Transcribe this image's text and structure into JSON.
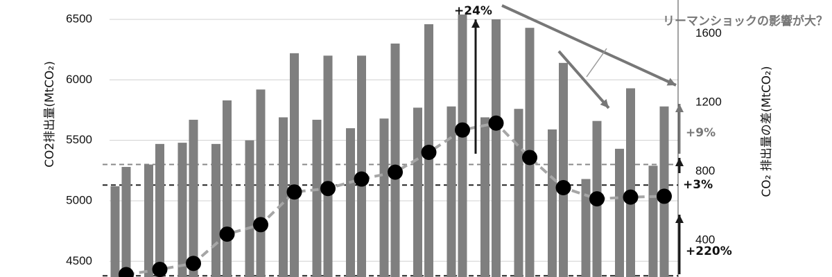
{
  "chart_data": {
    "type": "bar",
    "ylabel_left": "CO2排出量(MtCO₂)",
    "ylabel_right": "CO₂ 排出量の差(MtCO₂)",
    "ylim_left": [
      4370,
      6660
    ],
    "yticks_left": [
      4500,
      5000,
      5500,
      6000,
      6500
    ],
    "ylim_right": [
      186,
      1795
    ],
    "yticks_right": [
      400,
      800,
      1200,
      1600
    ],
    "grid": "horizontal",
    "series": [
      {
        "values": [
          5120,
          5300,
          5480,
          5470,
          5500,
          5690,
          5670,
          5600,
          5680,
          5770,
          5780,
          5690,
          5760,
          5590,
          5180,
          5430,
          5290
        ]
      },
      {
        "values": [
          5280,
          5470,
          5670,
          5830,
          5920,
          6220,
          6200,
          6200,
          6300,
          6460,
          6540,
          6500,
          6430,
          6140,
          5660,
          5930,
          5780
        ]
      },
      {
        "values": [
          200,
          230,
          265,
          435,
          490,
          680,
          700,
          755,
          795,
          910,
          1040,
          1080,
          880,
          705,
          640,
          650,
          655
        ]
      }
    ],
    "reference_lines": [
      {
        "axis": "left",
        "value": 5300,
        "style": "dashed",
        "color": "#888888"
      },
      {
        "axis": "left",
        "value": 5130,
        "style": "dashed",
        "color": "#222222"
      },
      {
        "axis": "left",
        "value": 4380,
        "style": "dashed",
        "color": "#222222"
      }
    ],
    "annotations": [
      {
        "text": "+24%"
      },
      {
        "text": "リーマンショックの影響が大？"
      },
      {
        "text": "+9%"
      },
      {
        "text": "+3%"
      },
      {
        "text": "+220%"
      }
    ],
    "colors": {
      "bar": "#7f7f7f",
      "line": "#a6a6a6",
      "marker": "#000000",
      "grid": "#d0d0d0",
      "arrow_dark": "#1a1a1a",
      "arrow_gray": "#777777"
    }
  }
}
